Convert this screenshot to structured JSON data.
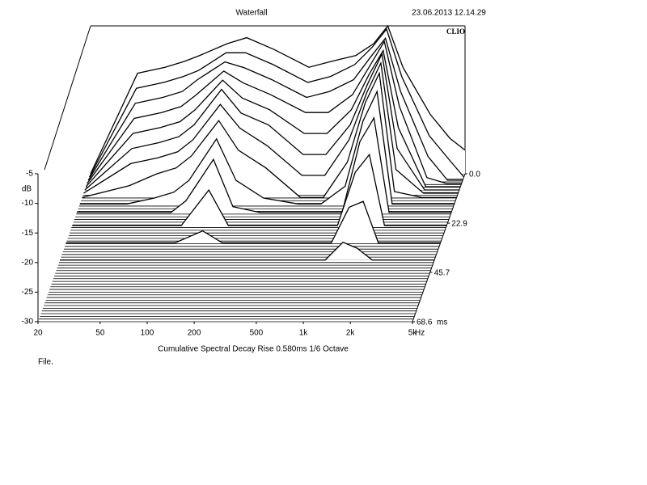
{
  "chart_data": {
    "type": "waterfall",
    "title": "Waterfall",
    "timestamp": "23.06.2013 12.14.29",
    "brand": "CLIO",
    "xlabel": "Cumulative Spectral Decay  Rise 0.580ms  1/6 Octave",
    "xunit": "Hz",
    "yunit": "dB",
    "zunit": "ms",
    "footer": "File.",
    "xscale": "log",
    "xlim": [
      20,
      5000
    ],
    "xticks": [
      20,
      50,
      100,
      200,
      500,
      {
        "value": 1000,
        "label": "1k"
      },
      {
        "value": 2000,
        "label": "2k"
      },
      {
        "value": 5000,
        "label": "5k"
      }
    ],
    "ylim": [
      -30,
      -5
    ],
    "yticks": [
      -5,
      -10,
      -15,
      -20,
      -25,
      -30
    ],
    "zlim": [
      0,
      68.6
    ],
    "zticks": [
      {
        "value": 0,
        "label": "0.0"
      },
      22.9,
      45.7,
      68.6
    ],
    "x": [
      20,
      40,
      60,
      80,
      100,
      150,
      200,
      300,
      500,
      700,
      1000,
      1300,
      1600,
      2000,
      3000,
      4000,
      5000
    ],
    "slices": [
      {
        "time": 0,
        "values": [
          -30,
          -13,
          -12,
          -11,
          -10,
          -8,
          -7,
          -9,
          -12,
          -11,
          -10,
          -8,
          -5,
          -12,
          -20,
          -24,
          -26
        ]
      },
      {
        "time": 1.5,
        "values": [
          -30,
          -15,
          -14,
          -13,
          -12,
          -9,
          -9,
          -11,
          -14,
          -13,
          -11,
          -8,
          -5,
          -13,
          -23,
          -27,
          -30
        ]
      },
      {
        "time": 3,
        "values": [
          -30,
          -17,
          -16,
          -15,
          -13,
          -10,
          -11,
          -13,
          -16,
          -15,
          -13,
          -9,
          -6,
          -15,
          -26,
          -30,
          -30
        ]
      },
      {
        "time": 4.5,
        "values": [
          -30,
          -19,
          -18,
          -17,
          -15,
          -11,
          -13,
          -15,
          -18,
          -18,
          -15,
          -10,
          -6,
          -17,
          -29,
          -30,
          -30
        ]
      },
      {
        "time": 6,
        "values": [
          -30,
          -21,
          -20,
          -19,
          -17,
          -12,
          -15,
          -17,
          -21,
          -21,
          -17,
          -11,
          -7,
          -20,
          -30,
          -30,
          -30
        ]
      },
      {
        "time": 7.5,
        "values": [
          -30,
          -23,
          -22,
          -21,
          -19,
          -13,
          -17,
          -19,
          -24,
          -24,
          -19,
          -12,
          -7,
          -23,
          -30,
          -30,
          -30
        ]
      },
      {
        "time": 9,
        "values": [
          -30,
          -25,
          -24,
          -23,
          -21,
          -15,
          -19,
          -22,
          -27,
          -27,
          -21,
          -13,
          -8,
          -26,
          -30,
          -30,
          -30
        ]
      },
      {
        "time": 11,
        "values": [
          -30,
          -28,
          -26,
          -25,
          -23,
          -17,
          -22,
          -25,
          -30,
          -30,
          -24,
          -14,
          -9,
          -29,
          -30,
          -30,
          -30
        ]
      },
      {
        "time": 14,
        "values": [
          -30,
          -30,
          -29,
          -28,
          -26,
          -19,
          -26,
          -29,
          -30,
          -30,
          -27,
          -16,
          -11,
          -30,
          -30,
          -30,
          -30
        ]
      },
      {
        "time": 18,
        "values": [
          -30,
          -30,
          -30,
          -30,
          -28,
          -21,
          -29,
          -30,
          -30,
          -30,
          -30,
          -18,
          -14,
          -30,
          -30,
          -30,
          -30
        ]
      },
      {
        "time": 24,
        "values": [
          -30,
          -30,
          -30,
          -30,
          -30,
          -24,
          -30,
          -30,
          -30,
          -30,
          -30,
          -21,
          -18,
          -30,
          -30,
          -30,
          -30
        ]
      },
      {
        "time": 32,
        "values": [
          -30,
          -30,
          -30,
          -30,
          -30,
          -28,
          -30,
          -30,
          -30,
          -30,
          -30,
          -24,
          -23,
          -30,
          -30,
          -30,
          -30
        ]
      },
      {
        "time": 40,
        "values": [
          -30,
          -30,
          -30,
          -30,
          -30,
          -30,
          -30,
          -30,
          -30,
          -30,
          -30,
          -27,
          -28,
          -30,
          -30,
          -30,
          -30
        ]
      }
    ]
  }
}
